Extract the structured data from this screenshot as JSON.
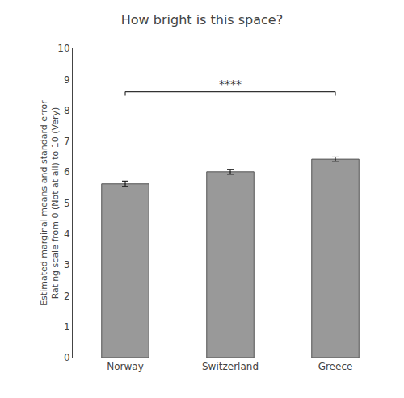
{
  "chart_data": {
    "type": "bar",
    "title": "How bright is this space?",
    "ylabel": [
      "Estimated marginal means and standard error",
      "Rating scale from 0 (Not at all) to 10 (Very)"
    ],
    "categories": [
      "Norway",
      "Switzerland",
      "Greece"
    ],
    "values": [
      5.62,
      6.01,
      6.42
    ],
    "errors": [
      0.09,
      0.08,
      0.07
    ],
    "color": "#999999",
    "ylim": [
      0,
      10
    ],
    "yticks": [
      0,
      1,
      2,
      3,
      4,
      5,
      6,
      7,
      8,
      9,
      10
    ],
    "grid": false,
    "annotations": [
      {
        "text": "****",
        "from": "Norway",
        "to": "Greece",
        "y": 8.6
      }
    ]
  }
}
